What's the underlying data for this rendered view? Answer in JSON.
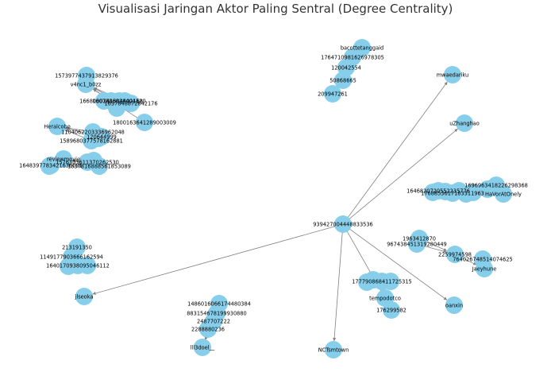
{
  "title": "Visualisasi Jaringan Aktor Paling Sentral (Degree Centrality)",
  "colors": {
    "node": "#87CEEB",
    "edge": "#808080",
    "text": "#000000",
    "title": "#333333"
  },
  "nodes": [
    {
      "id": "n1",
      "label": "bacottetanggaid"
    },
    {
      "id": "n2",
      "label": "1764710981626978305"
    },
    {
      "id": "n3",
      "label": "120042554"
    },
    {
      "id": "n4",
      "label": "50868665"
    },
    {
      "id": "n5",
      "label": "209947261"
    },
    {
      "id": "n6",
      "label": "mwaedariku"
    },
    {
      "id": "n7",
      "label": "1573977437913829376"
    },
    {
      "id": "n8",
      "label": "v4nc1_b0zz"
    },
    {
      "id": "n9",
      "label": "1668000241384402168"
    },
    {
      "id": "n10",
      "label": "1607886028404120"
    },
    {
      "id": "n11",
      "label": "1637848872842176"
    },
    {
      "id": "n12",
      "label": "1800163641289003009"
    },
    {
      "id": "n13",
      "label": "uZhanghao"
    },
    {
      "id": "n14",
      "label": "Heralcobo"
    },
    {
      "id": "n15",
      "label": "1104062203336962048"
    },
    {
      "id": "n16",
      "label": "120644999"
    },
    {
      "id": "n17",
      "label": "1589680377578162881"
    },
    {
      "id": "n18",
      "label": "reviewmovie"
    },
    {
      "id": "n19",
      "label": "1576303611370262530"
    },
    {
      "id": "n20",
      "label": "1648397783421636091"
    },
    {
      "id": "n21",
      "label": "1837816888561853089"
    },
    {
      "id": "n22",
      "label": "1646820720552235776"
    },
    {
      "id": "n23",
      "label": "1696963418226298368"
    },
    {
      "id": "n24",
      "label": "1768853617183311963"
    },
    {
      "id": "n25",
      "label": "HaVorAtOnely"
    },
    {
      "id": "n26",
      "label": "939427004448833536"
    },
    {
      "id": "n27",
      "label": "1963412870"
    },
    {
      "id": "n28",
      "label": "967438451319280449"
    },
    {
      "id": "n29",
      "label": "2259974598"
    },
    {
      "id": "n30",
      "label": "764026748514074625"
    },
    {
      "id": "n31",
      "label": "Jaeyhune"
    },
    {
      "id": "n32",
      "label": "213191350"
    },
    {
      "id": "n33",
      "label": "1149177903666162594"
    },
    {
      "id": "n34",
      "label": "1640170938095046112"
    },
    {
      "id": "n35",
      "label": "177790868411725315"
    },
    {
      "id": "n36",
      "label": "tempodotco"
    },
    {
      "id": "n37",
      "label": "176299582"
    },
    {
      "id": "n38",
      "label": "oanxin"
    },
    {
      "id": "n39",
      "label": "jlseoka"
    },
    {
      "id": "n40",
      "label": "1486016066174480384"
    },
    {
      "id": "n41",
      "label": "883154678199930880"
    },
    {
      "id": "n42",
      "label": "2487707222"
    },
    {
      "id": "n43",
      "label": "2288880236"
    },
    {
      "id": "n44",
      "label": "lll3doel__"
    },
    {
      "id": "n45",
      "label": "NCTsmtown"
    }
  ],
  "edges": [
    {
      "from": "n26",
      "to": "n6"
    },
    {
      "from": "n26",
      "to": "n13"
    },
    {
      "from": "n26",
      "to": "n39"
    },
    {
      "from": "n26",
      "to": "n45"
    },
    {
      "from": "n26",
      "to": "n36"
    },
    {
      "from": "n26",
      "to": "n38"
    },
    {
      "from": "n9",
      "to": "n8"
    },
    {
      "from": "n10",
      "to": "n8"
    },
    {
      "from": "n11",
      "to": "n8"
    },
    {
      "from": "n12",
      "to": "n8"
    },
    {
      "from": "n15",
      "to": "n14"
    },
    {
      "from": "n16",
      "to": "n14"
    },
    {
      "from": "n17",
      "to": "n14"
    },
    {
      "from": "n19",
      "to": "n18"
    },
    {
      "from": "n20",
      "to": "n18"
    },
    {
      "from": "n21",
      "to": "n18"
    },
    {
      "from": "n2",
      "to": "n1"
    },
    {
      "from": "n3",
      "to": "n2"
    },
    {
      "from": "n4",
      "to": "n3"
    },
    {
      "from": "n5",
      "to": "n4"
    },
    {
      "from": "n22",
      "to": "n25"
    },
    {
      "from": "n23",
      "to": "n25"
    },
    {
      "from": "n24",
      "to": "n25"
    },
    {
      "from": "n27",
      "to": "n29"
    },
    {
      "from": "n28",
      "to": "n29"
    },
    {
      "from": "n30",
      "to": "n31"
    },
    {
      "from": "n29",
      "to": "n31"
    },
    {
      "from": "n33",
      "to": "n32"
    },
    {
      "from": "n34",
      "to": "n32"
    },
    {
      "from": "n35",
      "to": "n36"
    },
    {
      "from": "n37",
      "to": "n36"
    },
    {
      "from": "n40",
      "to": "n44"
    },
    {
      "from": "n41",
      "to": "n44"
    },
    {
      "from": "n42",
      "to": "n44"
    },
    {
      "from": "n43",
      "to": "n44"
    }
  ]
}
